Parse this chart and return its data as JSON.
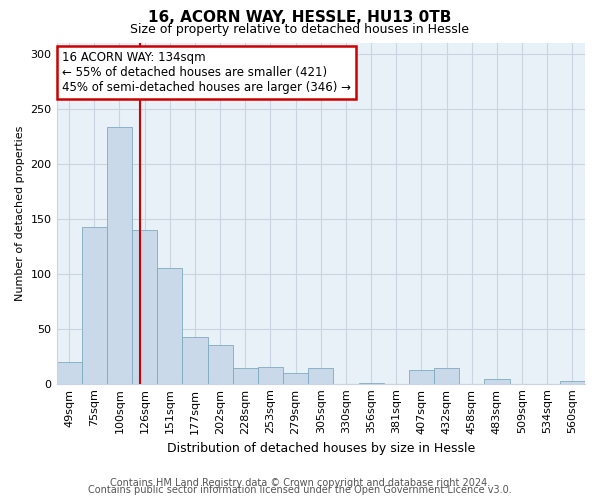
{
  "title": "16, ACORN WAY, HESSLE, HU13 0TB",
  "subtitle": "Size of property relative to detached houses in Hessle",
  "xlabel": "Distribution of detached houses by size in Hessle",
  "ylabel": "Number of detached properties",
  "bar_labels": [
    "49sqm",
    "75sqm",
    "100sqm",
    "126sqm",
    "151sqm",
    "177sqm",
    "202sqm",
    "228sqm",
    "253sqm",
    "279sqm",
    "305sqm",
    "330sqm",
    "356sqm",
    "381sqm",
    "407sqm",
    "432sqm",
    "458sqm",
    "483sqm",
    "509sqm",
    "534sqm",
    "560sqm"
  ],
  "bar_values": [
    20,
    142,
    233,
    140,
    105,
    42,
    35,
    14,
    15,
    10,
    14,
    0,
    1,
    0,
    12,
    14,
    0,
    4,
    0,
    0,
    2
  ],
  "bar_color": "#c9d9ea",
  "bar_edge_color": "#7faabf",
  "property_line_x": 3.32,
  "annotation_title": "16 ACORN WAY: 134sqm",
  "annotation_line1": "← 55% of detached houses are smaller (421)",
  "annotation_line2": "45% of semi-detached houses are larger (346) →",
  "annotation_box_facecolor": "#ffffff",
  "annotation_box_edgecolor": "#cc0000",
  "vline_color": "#cc0000",
  "ylim": [
    0,
    310
  ],
  "yticks": [
    0,
    50,
    100,
    150,
    200,
    250,
    300
  ],
  "footer1": "Contains HM Land Registry data © Crown copyright and database right 2024.",
  "footer2": "Contains public sector information licensed under the Open Government Licence v3.0.",
  "bg_color": "#ffffff",
  "plot_bg_color": "#e8f0f8",
  "grid_color": "#c8d4e0",
  "title_fontsize": 11,
  "subtitle_fontsize": 9,
  "xlabel_fontsize": 9,
  "ylabel_fontsize": 8,
  "tick_fontsize": 8,
  "annot_fontsize": 8.5,
  "footer_fontsize": 7
}
